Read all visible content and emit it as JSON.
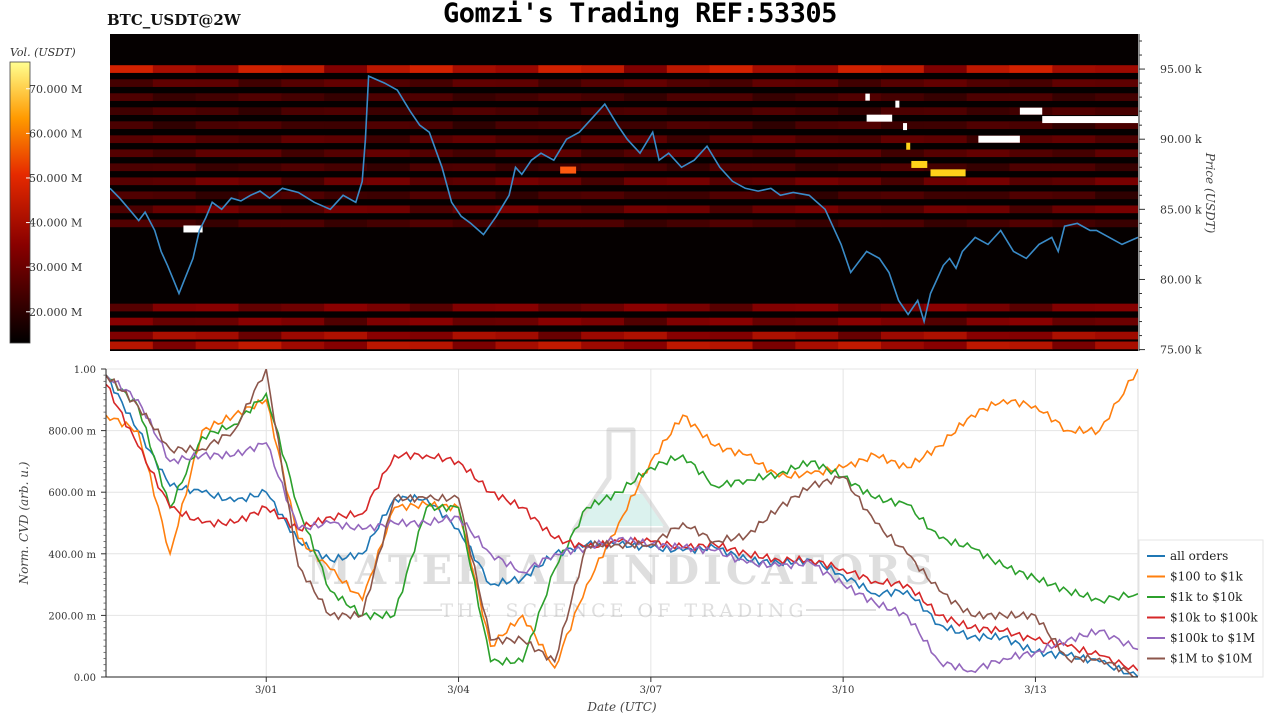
{
  "title": "Gomzi's Trading REF:53305",
  "symbol": "BTC_USDT@2W",
  "watermark": {
    "brand": "MATERIAL INDICATORS",
    "tagline": "THE SCIENCE OF TRADING"
  },
  "colors": {
    "price_line": "#3a8bc8",
    "all_orders": "#1f77b4",
    "s100_1k": "#ff7f0e",
    "s1k_10k": "#2ca02c",
    "s10k_100k": "#d62728",
    "s100k_1m": "#9467bd",
    "s1m_10m": "#8c564b"
  },
  "chart_data": [
    {
      "type": "heatmap",
      "title": "",
      "colorbar": {
        "label": "Vol. (USDT)",
        "ticks": [
          "20.000 M",
          "30.000 M",
          "40.000 M",
          "50.000 M",
          "60.000 M",
          "70.000 M"
        ],
        "range": [
          13,
          76
        ]
      },
      "ylabel": "Price (USDT)",
      "y_ticks": [
        "75.00 k",
        "80.00 k",
        "85.00 k",
        "90.00 k",
        "95.00 k"
      ],
      "ylim": [
        74.9,
        97.5
      ],
      "xlim": [
        -2.5,
        13.6
      ],
      "price_series": {
        "x": [
          -2.5,
          -2.35,
          -2.2,
          -2.05,
          -1.95,
          -1.8,
          -1.7,
          -1.6,
          -1.5,
          -1.42,
          -1.35,
          -1.2,
          -1.1,
          -1.0,
          -0.9,
          -0.75,
          -0.6,
          -0.45,
          -0.3,
          -0.15,
          0.0,
          0.2,
          0.45,
          0.7,
          0.95,
          1.15,
          1.35,
          1.45,
          1.5,
          1.55,
          1.8,
          2.0,
          2.2,
          2.35,
          2.5,
          2.7,
          2.85,
          3.0,
          3.15,
          3.35,
          3.55,
          3.75,
          3.85,
          3.95,
          4.1,
          4.25,
          4.45,
          4.65,
          4.85,
          5.05,
          5.25,
          5.45,
          5.6,
          5.8,
          6.0,
          6.1,
          6.25,
          6.45,
          6.65,
          6.85,
          7.05,
          7.25,
          7.45,
          7.65,
          7.85,
          8.0,
          8.2,
          8.45,
          8.7,
          8.95,
          9.1,
          9.35,
          9.55,
          9.7,
          9.85,
          10.0,
          10.15,
          10.25,
          10.35,
          10.45,
          10.55,
          10.65,
          10.75,
          10.85,
          11.05,
          11.25,
          11.45,
          11.65,
          11.85,
          12.05,
          12.25,
          12.35,
          12.45,
          12.65,
          12.85,
          12.95,
          13.15,
          13.35,
          13.6
        ],
        "y": [
          86.5,
          85.8,
          85.0,
          84.2,
          84.8,
          83.5,
          82.0,
          81.0,
          79.9,
          79.0,
          79.8,
          81.5,
          83.5,
          84.4,
          85.5,
          85.0,
          85.8,
          85.6,
          86.0,
          86.3,
          85.8,
          86.5,
          86.2,
          85.5,
          85.0,
          86.0,
          85.5,
          87.0,
          90.0,
          94.5,
          94.0,
          93.5,
          92.0,
          91.0,
          90.5,
          88.0,
          85.5,
          84.5,
          84.0,
          83.2,
          84.5,
          86.0,
          88.0,
          87.5,
          88.5,
          89.0,
          88.5,
          90.0,
          90.5,
          91.5,
          92.5,
          91.0,
          90.0,
          89.0,
          90.5,
          88.5,
          89.0,
          88.0,
          88.5,
          89.5,
          88.0,
          87.0,
          86.5,
          86.3,
          86.5,
          86.0,
          86.2,
          86.0,
          85.0,
          82.5,
          80.5,
          82.0,
          81.5,
          80.5,
          78.5,
          77.5,
          78.5,
          77.0,
          79.0,
          80.0,
          81.0,
          81.5,
          80.8,
          82.0,
          83.0,
          82.5,
          83.5,
          82.0,
          81.5,
          82.5,
          83.0,
          82.0,
          83.8,
          84.0,
          83.5,
          83.5,
          83.0,
          82.5,
          83.0
        ]
      },
      "horizontal_bands": [
        {
          "y": 95.0,
          "intensity": 0.55
        },
        {
          "y": 94.0,
          "intensity": 0.25
        },
        {
          "y": 93.0,
          "intensity": 0.2
        },
        {
          "y": 92.0,
          "intensity": 0.2
        },
        {
          "y": 91.0,
          "intensity": 0.2
        },
        {
          "y": 90.0,
          "intensity": 0.25
        },
        {
          "y": 89.0,
          "intensity": 0.25
        },
        {
          "y": 88.0,
          "intensity": 0.2
        },
        {
          "y": 87.0,
          "intensity": 0.3
        },
        {
          "y": 86.0,
          "intensity": 0.2
        },
        {
          "y": 85.0,
          "intensity": 0.3
        },
        {
          "y": 84.0,
          "intensity": 0.2
        },
        {
          "y": 78.0,
          "intensity": 0.35
        },
        {
          "y": 77.0,
          "intensity": 0.35
        },
        {
          "y": 76.0,
          "intensity": 0.45
        },
        {
          "y": 75.3,
          "intensity": 0.5
        }
      ],
      "hot_spots": [
        {
          "x0": -1.35,
          "x1": -1.05,
          "y": 83.6,
          "level": 1.0
        },
        {
          "x0": 4.55,
          "x1": 4.8,
          "y": 87.8,
          "level": 0.6
        },
        {
          "x0": 9.35,
          "x1": 9.75,
          "y": 91.5,
          "level": 1.0
        },
        {
          "x0": 9.33,
          "x1": 9.4,
          "y": 93.0,
          "level": 1.0
        },
        {
          "x0": 9.8,
          "x1": 9.86,
          "y": 92.5,
          "level": 1.0
        },
        {
          "x0": 9.92,
          "x1": 9.98,
          "y": 90.9,
          "level": 1.0
        },
        {
          "x0": 9.97,
          "x1": 10.02,
          "y": 89.5,
          "level": 0.85
        },
        {
          "x0": 10.05,
          "x1": 10.3,
          "y": 88.2,
          "level": 0.85
        },
        {
          "x0": 10.35,
          "x1": 10.9,
          "y": 87.6,
          "level": 0.85
        },
        {
          "x0": 11.1,
          "x1": 11.75,
          "y": 90.0,
          "level": 1.0
        },
        {
          "x0": 11.75,
          "x1": 12.1,
          "y": 92.0,
          "level": 1.0
        },
        {
          "x0": 12.1,
          "x1": 13.6,
          "y": 91.4,
          "level": 1.0
        }
      ]
    },
    {
      "type": "line",
      "title": "",
      "xlabel": "Date (UTC)",
      "ylabel": "Norm. CVD (arb. u.)",
      "xlim": [
        -2.5,
        13.6
      ],
      "ylim": [
        0,
        1
      ],
      "x_ticks": [
        {
          "x": 0,
          "label": "3/01"
        },
        {
          "x": 3,
          "label": "3/04"
        },
        {
          "x": 6,
          "label": "3/07"
        },
        {
          "x": 9,
          "label": "3/10"
        },
        {
          "x": 12,
          "label": "3/13"
        }
      ],
      "y_ticks": [
        {
          "y": 0,
          "label": "0.00"
        },
        {
          "y": 0.2,
          "label": "200.00 m"
        },
        {
          "y": 0.4,
          "label": "400.00 m"
        },
        {
          "y": 0.6,
          "label": "600.00 m"
        },
        {
          "y": 0.8,
          "label": "800.00 m"
        },
        {
          "y": 1.0,
          "label": "1.00"
        }
      ],
      "x": [
        -2.5,
        -2.0,
        -1.5,
        -1.0,
        -0.5,
        0.0,
        0.5,
        1.0,
        1.5,
        2.0,
        2.5,
        3.0,
        3.5,
        4.0,
        4.5,
        5.0,
        5.5,
        6.0,
        6.5,
        7.0,
        7.5,
        8.0,
        8.5,
        9.0,
        9.5,
        10.0,
        10.5,
        11.0,
        11.5,
        12.0,
        12.5,
        13.0,
        13.6
      ],
      "legend": {
        "placement": "right"
      },
      "series": [
        {
          "name": "all orders",
          "key": "all_orders",
          "values": [
            0.98,
            0.8,
            0.62,
            0.6,
            0.57,
            0.6,
            0.44,
            0.38,
            0.4,
            0.58,
            0.58,
            0.48,
            0.3,
            0.32,
            0.4,
            0.43,
            0.43,
            0.42,
            0.41,
            0.42,
            0.38,
            0.37,
            0.38,
            0.33,
            0.27,
            0.28,
            0.17,
            0.13,
            0.13,
            0.08,
            0.07,
            0.05,
            0.0
          ]
        },
        {
          "name": "$100 to $1k",
          "key": "s100_1k",
          "values": [
            0.85,
            0.8,
            0.4,
            0.8,
            0.85,
            0.9,
            0.45,
            0.35,
            0.25,
            0.55,
            0.56,
            0.55,
            0.1,
            0.2,
            0.03,
            0.3,
            0.5,
            0.7,
            0.85,
            0.75,
            0.72,
            0.65,
            0.66,
            0.68,
            0.72,
            0.68,
            0.75,
            0.85,
            0.9,
            0.88,
            0.8,
            0.8,
            1.0
          ]
        },
        {
          "name": "$1k to $10k",
          "key": "s1k_10k",
          "values": [
            0.98,
            0.88,
            0.55,
            0.78,
            0.82,
            0.92,
            0.55,
            0.28,
            0.2,
            0.2,
            0.55,
            0.55,
            0.05,
            0.05,
            0.35,
            0.55,
            0.6,
            0.68,
            0.72,
            0.62,
            0.64,
            0.66,
            0.7,
            0.65,
            0.58,
            0.56,
            0.45,
            0.42,
            0.36,
            0.32,
            0.28,
            0.25,
            0.27
          ]
        },
        {
          "name": "$10k to $100k",
          "key": "s10k_100k",
          "values": [
            0.95,
            0.75,
            0.55,
            0.5,
            0.5,
            0.55,
            0.48,
            0.52,
            0.53,
            0.72,
            0.72,
            0.7,
            0.6,
            0.55,
            0.45,
            0.42,
            0.44,
            0.44,
            0.42,
            0.43,
            0.4,
            0.38,
            0.38,
            0.35,
            0.31,
            0.3,
            0.2,
            0.16,
            0.15,
            0.12,
            0.1,
            0.07,
            0.02
          ]
        },
        {
          "name": "$100k to $1M",
          "key": "s100k_1m",
          "values": [
            0.98,
            0.9,
            0.7,
            0.72,
            0.72,
            0.76,
            0.48,
            0.5,
            0.48,
            0.5,
            0.5,
            0.52,
            0.4,
            0.34,
            0.4,
            0.42,
            0.45,
            0.43,
            0.42,
            0.41,
            0.37,
            0.36,
            0.37,
            0.3,
            0.24,
            0.2,
            0.05,
            0.02,
            0.06,
            0.08,
            0.12,
            0.15,
            0.09
          ]
        },
        {
          "name": "$1M to $10M",
          "key": "s1m_10m",
          "values": [
            0.98,
            0.88,
            0.74,
            0.74,
            0.8,
            1.0,
            0.36,
            0.2,
            0.2,
            0.58,
            0.58,
            0.58,
            0.12,
            0.12,
            0.05,
            0.43,
            0.43,
            0.43,
            0.5,
            0.44,
            0.46,
            0.55,
            0.62,
            0.65,
            0.5,
            0.4,
            0.28,
            0.2,
            0.2,
            0.2,
            0.06,
            0.06,
            0.0
          ]
        }
      ]
    }
  ]
}
